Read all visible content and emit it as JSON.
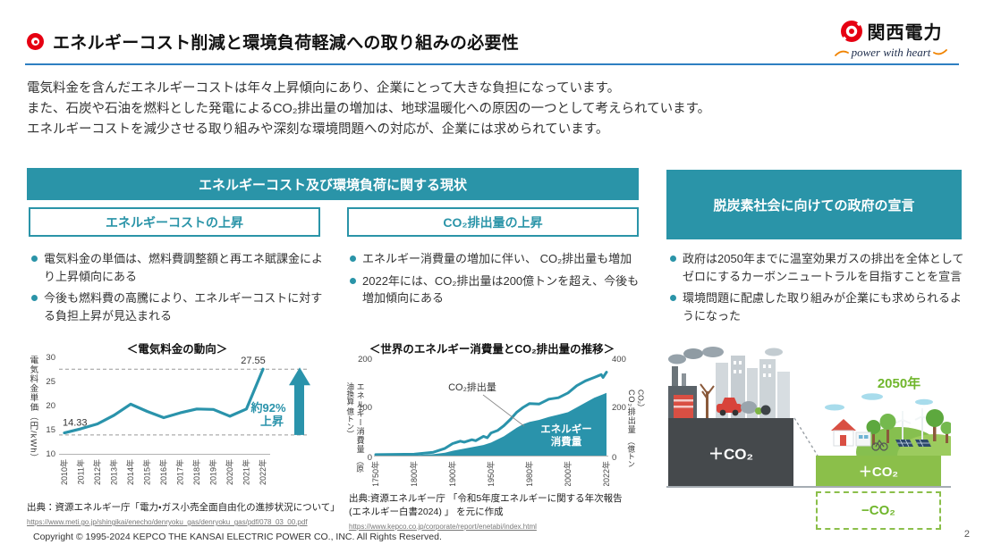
{
  "colors": {
    "accent": "#2a94a8",
    "blue_rule": "#2e7fc1",
    "red": "#e60012",
    "green_text": "#70b62c",
    "green_box": "#8bbf4a",
    "dark_box": "#45494c"
  },
  "header": {
    "title": "エネルギーコスト削減と環境負荷軽減への取り組みの必要性",
    "logo_name": "関西電力",
    "logo_tagline": "power with heart"
  },
  "intro_lines": [
    "電気料金を含んだエネルギーコストは年々上昇傾向にあり、企業にとって大きな負担になっています。",
    "また、石炭や石油を燃料とした発電によるCO₂排出量の増加は、地球温暖化への原因の一つとして考えられています。",
    "エネルギーコストを減少させる取り組みや深刻な環境問題への対応が、企業には求められています。"
  ],
  "left_panel": {
    "title": "エネルギーコスト及び環境負荷に関する現状",
    "columns": [
      {
        "subtitle": "エネルギーコストの上昇",
        "bullets": [
          "電気料金の単価は、燃料費調整額と再エネ賦課金により上昇傾向にある",
          "今後も燃料費の高騰により、エネルギーコストに対する負担上昇が見込まれる"
        ],
        "source": "出典：資源エネルギー庁「電力・ガス小売全面自由化の進捗状況について」",
        "source_url": "https://www.meti.go.jp/shingikai/enecho/denryoku_gas/denryoku_gas/pdf/078_03_00.pdf"
      },
      {
        "subtitle": "CO₂排出量の上昇",
        "bullets": [
          "エネルギー消費量の増加に伴い、 CO₂排出量も増加",
          "2022年には、CO₂排出量は200億トンを超え、今後も増加傾向にある"
        ],
        "source": "出典:資源エネルギー庁 「令和5年度エネルギーに関する年次報告",
        "source_line2": "(エネルギー白書2024) 」 を元に作成",
        "source_url": "https://www.kepco.co.jp/corporate/report/enetabi/index.html"
      }
    ]
  },
  "chart_data": [
    {
      "type": "line",
      "title": "＜電気料金の動向＞",
      "ylabel": "電気料金単価（円/kWh）",
      "categories": [
        "2010年",
        "2011年",
        "2012年",
        "2013年",
        "2014年",
        "2015年",
        "2016年",
        "2017年",
        "2018年",
        "2019年",
        "2020年",
        "2021年",
        "2022年"
      ],
      "values": [
        14.33,
        15.2,
        16.2,
        18.0,
        20.3,
        18.8,
        17.5,
        18.5,
        19.3,
        19.2,
        17.8,
        19.3,
        27.55
      ],
      "yticks": [
        30,
        25,
        20,
        15,
        10
      ],
      "ylim": [
        10,
        30
      ],
      "dashed_values": [
        27.55,
        13.9
      ],
      "point_labels": {
        "first": "14.33",
        "last": "27.55"
      },
      "annotation": [
        "約92%",
        "上昇"
      ],
      "line_color": "#2a93ab",
      "grid": "dashed reference lines only",
      "legend": "none"
    },
    {
      "type": "area+line",
      "title": "＜世界のエネルギー消費量とCO₂排出量の推移＞",
      "ylabel_left": "エネルギー消費量",
      "ylabel_left_sub": "（原油換算 億トン）",
      "ylabel_right": "CO₂排出量",
      "ylabel_right_sub": "（億トンCO₂）",
      "yticks_left": [
        200,
        100,
        0
      ],
      "yticks_right": [
        400,
        200,
        0
      ],
      "ylim_left": [
        0,
        200
      ],
      "ylim_right": [
        0,
        400
      ],
      "categories": [
        "1750年",
        "1800年",
        "1900年",
        "1950年",
        "1980年",
        "2000年",
        "2022年"
      ],
      "tick_years": [
        1750,
        1800,
        1900,
        1950,
        1980,
        2000,
        2022
      ],
      "series": [
        {
          "name": "エネルギー消費量",
          "type": "area",
          "x": [
            1750,
            1800,
            1850,
            1880,
            1900,
            1920,
            1940,
            1950,
            1960,
            1970,
            1975,
            1980,
            1985,
            1990,
            1995,
            2000,
            2005,
            2010,
            2015,
            2020,
            2022
          ],
          "values": [
            0.5,
            1,
            3,
            6,
            10,
            16,
            22,
            27,
            40,
            58,
            65,
            70,
            74,
            80,
            85,
            90,
            100,
            110,
            120,
            127,
            130
          ]
        },
        {
          "name": "CO₂排出量",
          "type": "line",
          "x": [
            1750,
            1800,
            1850,
            1880,
            1900,
            1910,
            1915,
            1925,
            1930,
            1940,
            1945,
            1950,
            1955,
            1960,
            1965,
            1970,
            1975,
            1980,
            1985,
            1990,
            1995,
            2000,
            2005,
            2010,
            2015,
            2019,
            2020,
            2022
          ],
          "values": [
            2,
            3,
            7,
            15,
            25,
            30,
            28,
            33,
            31,
            40,
            37,
            47,
            52,
            62,
            75,
            90,
            100,
            108,
            107,
            117,
            120,
            130,
            145,
            155,
            162,
            168,
            162,
            173
          ]
        }
      ],
      "area_color": "#2a93ab",
      "line_color": "#2a93ab",
      "legend": "inline labels"
    }
  ],
  "right_panel": {
    "title": "脱炭素社会に向けての政府の宣言",
    "bullets": [
      "政府は2050年までに温室効果ガスの排出を全体としてゼロにするカーボンニュートラルを目指すことを宣言",
      "環境問題に配慮した取り組みが企業にも求められるようになった"
    ],
    "illustration": {
      "year_label": "2050年",
      "left_box": "＋CO₂",
      "right_box": "＋CO₂",
      "bottom_box": "−CO₂"
    }
  },
  "footer": {
    "copyright": "Copyright © 1995-2024 KEPCO THE KANSAI ELECTRIC POWER CO., INC. All Rights Reserved.",
    "page": "2"
  }
}
